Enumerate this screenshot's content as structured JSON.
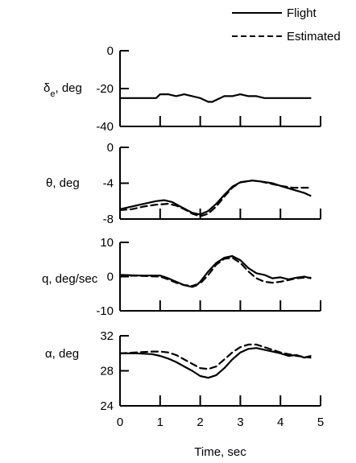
{
  "chart_data": [
    {
      "type": "line",
      "ylabel": "δe, deg",
      "ylabel_main": "δ",
      "ylabel_sub": "e",
      "ylabel_unit": ", deg",
      "ylim": [
        -40,
        0
      ],
      "yticks": [
        "0",
        "-20",
        "-40"
      ],
      "xlim": [
        0,
        5
      ],
      "series": [
        {
          "name": "Flight",
          "style": "solid",
          "x": [
            0,
            0.5,
            0.9,
            1.0,
            1.2,
            1.4,
            1.6,
            1.8,
            2.0,
            2.2,
            2.3,
            2.4,
            2.6,
            2.8,
            3.0,
            3.2,
            3.4,
            3.6,
            3.8,
            4.0,
            4.3,
            4.6,
            4.75
          ],
          "y": [
            -25,
            -25,
            -25,
            -23,
            -23,
            -24,
            -23,
            -24,
            -25,
            -27,
            -27,
            -26,
            -24,
            -24,
            -23,
            -24,
            -24,
            -25,
            -25,
            -25,
            -25,
            -25,
            -25
          ]
        }
      ]
    },
    {
      "type": "line",
      "ylabel": "θ, deg",
      "ylim": [
        -8,
        0
      ],
      "yticks": [
        "0",
        "-4",
        "-8"
      ],
      "xlim": [
        0,
        5
      ],
      "series": [
        {
          "name": "Flight",
          "style": "solid",
          "x": [
            0,
            0.3,
            0.6,
            0.9,
            1.1,
            1.3,
            1.5,
            1.8,
            2.0,
            2.2,
            2.4,
            2.6,
            2.8,
            3.0,
            3.3,
            3.5,
            3.8,
            4.0,
            4.3,
            4.6,
            4.75
          ],
          "y": [
            -6.9,
            -6.6,
            -6.3,
            -6.0,
            -5.9,
            -6.1,
            -6.6,
            -7.3,
            -7.5,
            -7.1,
            -6.3,
            -5.3,
            -4.4,
            -3.9,
            -3.7,
            -3.8,
            -4.0,
            -4.3,
            -4.7,
            -5.1,
            -5.4
          ]
        },
        {
          "name": "Estimated",
          "style": "dashed",
          "x": [
            0,
            0.3,
            0.6,
            0.9,
            1.2,
            1.4,
            1.6,
            1.8,
            2.0,
            2.2,
            2.4,
            2.6,
            2.8,
            3.0,
            3.3,
            3.5,
            3.8,
            4.0,
            4.3,
            4.6,
            4.75
          ],
          "y": [
            -7.0,
            -6.9,
            -6.6,
            -6.4,
            -6.3,
            -6.5,
            -6.9,
            -7.4,
            -7.7,
            -7.4,
            -6.6,
            -5.5,
            -4.5,
            -3.9,
            -3.7,
            -3.8,
            -4.1,
            -4.3,
            -4.5,
            -4.5,
            -4.5
          ]
        }
      ]
    },
    {
      "type": "line",
      "ylabel": "q, deg/sec",
      "ylim": [
        -10,
        10
      ],
      "yticks": [
        "10",
        "0",
        "-10"
      ],
      "xlim": [
        0,
        5
      ],
      "series": [
        {
          "name": "Flight",
          "style": "solid",
          "x": [
            0,
            0.5,
            1.0,
            1.2,
            1.4,
            1.6,
            1.8,
            1.9,
            2.0,
            2.2,
            2.4,
            2.6,
            2.8,
            3.0,
            3.2,
            3.4,
            3.6,
            3.8,
            4.0,
            4.2,
            4.4,
            4.6,
            4.75
          ],
          "y": [
            0.5,
            0.3,
            0.3,
            -0.5,
            -1.5,
            -2.5,
            -3.0,
            -2.6,
            -1.5,
            1.5,
            4.0,
            5.5,
            6.0,
            4.8,
            2.5,
            1.0,
            0.5,
            -0.5,
            -0.2,
            -0.8,
            -0.3,
            0.0,
            -0.5
          ]
        },
        {
          "name": "Estimated",
          "style": "dashed",
          "x": [
            0,
            0.5,
            1.0,
            1.2,
            1.4,
            1.6,
            1.8,
            2.0,
            2.2,
            2.4,
            2.6,
            2.8,
            3.0,
            3.2,
            3.4,
            3.6,
            3.8,
            4.0,
            4.2,
            4.4,
            4.6,
            4.75
          ],
          "y": [
            0.3,
            0.2,
            0.0,
            -0.8,
            -1.8,
            -2.5,
            -2.7,
            -2.0,
            0.5,
            3.5,
            5.2,
            5.5,
            4.0,
            1.5,
            -0.5,
            -1.5,
            -1.8,
            -1.5,
            -1.0,
            -0.5,
            -0.3,
            -0.3
          ]
        }
      ]
    },
    {
      "type": "line",
      "ylabel": "α, deg",
      "ylim": [
        24,
        32
      ],
      "yticks": [
        "32",
        "28",
        "24"
      ],
      "xlabel": "Time, sec",
      "xticks": [
        "0",
        "1",
        "2",
        "3",
        "4",
        "5"
      ],
      "xlim": [
        0,
        5
      ],
      "series": [
        {
          "name": "Flight",
          "style": "solid",
          "x": [
            0,
            0.4,
            0.8,
            1.0,
            1.2,
            1.4,
            1.6,
            1.8,
            2.0,
            2.2,
            2.4,
            2.6,
            2.8,
            3.0,
            3.2,
            3.4,
            3.6,
            3.8,
            4.0,
            4.2,
            4.4,
            4.6,
            4.75
          ],
          "y": [
            30.0,
            30.0,
            29.9,
            29.7,
            29.4,
            29.0,
            28.5,
            28.0,
            27.4,
            27.2,
            27.5,
            28.3,
            29.3,
            30.1,
            30.5,
            30.6,
            30.4,
            30.2,
            30.0,
            29.7,
            29.8,
            29.5,
            29.7
          ]
        },
        {
          "name": "Estimated",
          "style": "dashed",
          "x": [
            0,
            0.4,
            0.8,
            1.0,
            1.2,
            1.4,
            1.6,
            1.8,
            2.0,
            2.2,
            2.4,
            2.6,
            2.8,
            3.0,
            3.2,
            3.4,
            3.6,
            3.8,
            4.0,
            4.2,
            4.4,
            4.6,
            4.75
          ],
          "y": [
            30.0,
            30.1,
            30.2,
            30.2,
            30.1,
            29.8,
            29.3,
            28.8,
            28.3,
            28.2,
            28.5,
            29.3,
            30.1,
            30.7,
            31.0,
            31.0,
            30.7,
            30.4,
            30.1,
            29.9,
            29.7,
            29.6,
            29.5
          ]
        }
      ]
    }
  ],
  "legend": {
    "position": "top-right",
    "entries": [
      {
        "label": "Flight",
        "style": "solid"
      },
      {
        "label": "Estimated",
        "style": "dashed"
      }
    ]
  }
}
